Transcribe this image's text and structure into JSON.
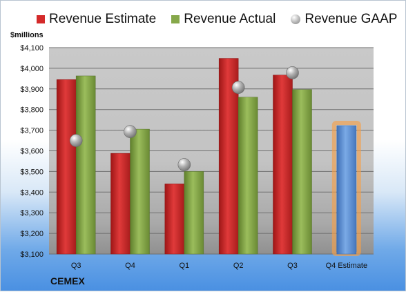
{
  "colors": {
    "estimate": "#d42a2a",
    "actual": "#86a84a",
    "gaap": "#a8a8a8",
    "q4_estimate": "#5b8fd6",
    "highlight": "#f5a04a"
  },
  "legend": {
    "estimate_label": "Revenue Estimate",
    "actual_label": "Revenue Actual",
    "gaap_label": "Revenue GAAP"
  },
  "unit_label": "$millions",
  "brand": "CEMEX",
  "chart_data": {
    "type": "bar",
    "categories": [
      "Q3",
      "Q4",
      "Q1",
      "Q2",
      "Q3",
      "Q4 Estimate"
    ],
    "series": [
      {
        "name": "Revenue Estimate",
        "values": [
          3945,
          3588,
          3440,
          4048,
          3967,
          3722
        ]
      },
      {
        "name": "Revenue Actual",
        "values": [
          3963,
          3705,
          3500,
          3860,
          3897,
          null
        ]
      },
      {
        "name": "Revenue GAAP",
        "values": [
          3650,
          3693,
          3533,
          3907,
          3978,
          null
        ]
      }
    ],
    "ylim": [
      3100,
      4100
    ],
    "yticks": [
      3100,
      3200,
      3300,
      3400,
      3500,
      3600,
      3700,
      3800,
      3900,
      4000,
      4100
    ],
    "ytick_labels": [
      "$3,100",
      "$3,200",
      "$3,300",
      "$3,400",
      "$3,500",
      "$3,600",
      "$3,700",
      "$3,800",
      "$3,900",
      "$4,000",
      "$4,100"
    ],
    "ylabel": "$millions",
    "grid": true,
    "legend_position": "top"
  }
}
